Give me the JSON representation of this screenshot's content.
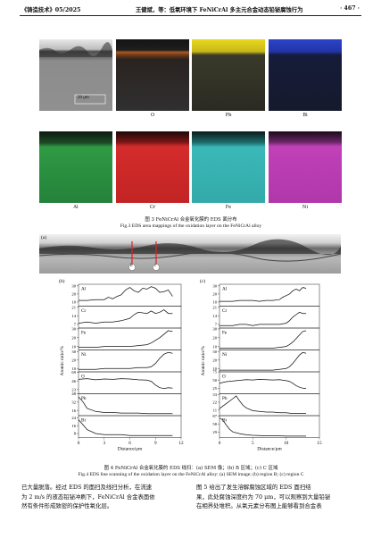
{
  "header": {
    "journal": "《铸造技术》05/2025",
    "title": "王健斌，等：低氧环境下 FeNiCrAl 多主元合金动态铅铋腐蚀行为",
    "page": "· 467 ·"
  },
  "fig3": {
    "scale_bar": "20 μm",
    "row1_labels": [
      "O",
      "Pb",
      "Bi"
    ],
    "row2_labels": [
      "Al",
      "Cr",
      "Fe",
      "Ni"
    ],
    "caption_cn": "图 3 FeNiCrAl 合金氧化膜的 EDS 面分布",
    "caption_en": "Fig.3 EDS area mappings of the oxidation layer on the FeNiCrAl alloy"
  },
  "fig4": {
    "panel_a": "(a)",
    "marker_b": "b",
    "marker_c": "c",
    "panel_b": "(b)",
    "panel_c": "(c)",
    "ylabel": "Atomic ratio/%",
    "xlabel": "Distance/μm",
    "caption_cn": "图 4 FeNiCrAl 合金氧化膜的 EDS 线扫：(a) SEM 像；(b) B 区域；(c) C 区域",
    "caption_en": "Fig.4 EDS line scanning of the oxidation layer on the FeNiCrAl alloy: (a) SEM image; (b) region B; (c) region C"
  },
  "chart_data": [
    {
      "type": "line",
      "title": "(b)",
      "xlabel": "Distance/μm",
      "ylabel": "Atomic ratio/%",
      "xlim": [
        0,
        12
      ],
      "xticks": [
        0,
        3,
        6,
        9,
        12
      ],
      "series": [
        {
          "name": "Al",
          "yticks": [
            10,
            20,
            30
          ],
          "ylim": [
            5,
            32
          ],
          "x": [
            0,
            1,
            2,
            3,
            3.5,
            4,
            4.5,
            5,
            5.5,
            6,
            6.5,
            7,
            7.5,
            8,
            8.5,
            9,
            9.5,
            10,
            10.5,
            11
          ],
          "values": [
            12,
            12,
            13,
            13,
            16,
            14,
            17,
            19,
            25,
            28,
            24,
            22,
            27,
            26,
            29,
            27,
            22,
            23,
            25,
            17
          ]
        },
        {
          "name": "Cr",
          "yticks": [
            7,
            14,
            21
          ],
          "ylim": [
            4,
            22
          ],
          "x": [
            0,
            1,
            2,
            3,
            4,
            5,
            6,
            6.5,
            7,
            8,
            8.5,
            9,
            9.5,
            10,
            10.5,
            11
          ],
          "values": [
            8,
            9,
            8,
            9,
            9,
            10,
            12,
            15,
            17,
            16,
            18,
            16,
            17,
            19,
            16,
            16
          ]
        },
        {
          "name": "Fe",
          "yticks": [
            10,
            20,
            30
          ],
          "ylim": [
            6,
            31
          ],
          "x": [
            0,
            1,
            2,
            3,
            4,
            5,
            6,
            7,
            8,
            8.5,
            9,
            9.5,
            10,
            10.5,
            11
          ],
          "values": [
            9,
            9,
            9,
            10,
            10,
            10,
            10,
            11,
            12,
            14,
            17,
            20,
            24,
            28,
            27
          ]
        },
        {
          "name": "Ni",
          "yticks": [
            10,
            20,
            30
          ],
          "ylim": [
            6,
            32
          ],
          "x": [
            0,
            1,
            2,
            3,
            4,
            5,
            6,
            7,
            8,
            8.5,
            9,
            9.5,
            10,
            10.5,
            11
          ],
          "values": [
            9,
            9,
            9,
            10,
            10,
            10,
            10,
            11,
            11,
            12,
            16,
            22,
            27,
            29,
            28
          ]
        },
        {
          "name": "O",
          "yticks": [
            23,
            46,
            69
          ],
          "ylim": [
            12,
            70
          ],
          "x": [
            0,
            1,
            2,
            3,
            4,
            5,
            6,
            7,
            8,
            8.5,
            9,
            9.5,
            10,
            10.5,
            11
          ],
          "values": [
            50,
            52,
            49,
            51,
            50,
            52,
            51,
            49,
            48,
            45,
            35,
            28,
            26,
            28,
            27
          ]
        },
        {
          "name": "Pb",
          "yticks": [
            16,
            32,
            48
          ],
          "ylim": [
            6,
            48
          ],
          "x": [
            0,
            0.5,
            1,
            2,
            3,
            4,
            5,
            6,
            7,
            8,
            9,
            10,
            11
          ],
          "values": [
            42,
            33,
            20,
            14,
            12,
            12,
            11,
            11,
            11,
            10,
            10,
            10,
            10
          ]
        },
        {
          "name": "Bi",
          "yticks": [
            8,
            16,
            24
          ],
          "ylim": [
            4,
            26
          ],
          "x": [
            0,
            0.5,
            1,
            2,
            3,
            4,
            5,
            6,
            7,
            8,
            9,
            10,
            11
          ],
          "values": [
            22,
            17,
            12,
            8,
            7,
            7,
            7,
            6,
            6,
            6,
            6,
            6,
            6
          ]
        }
      ]
    },
    {
      "type": "line",
      "title": "(c)",
      "xlabel": "Distance/μm",
      "ylabel": "Atomic ratio/%",
      "xlim": [
        0,
        15
      ],
      "xticks": [
        0,
        5,
        10,
        15
      ],
      "series": [
        {
          "name": "Al",
          "yticks": [
            10,
            20,
            30
          ],
          "ylim": [
            5,
            32
          ],
          "x": [
            0,
            1,
            2,
            3,
            4,
            5,
            6,
            7,
            8,
            9,
            9.5,
            10,
            10.5,
            11,
            11.5,
            12,
            12.5,
            13
          ],
          "values": [
            11,
            11,
            11,
            12,
            12,
            12,
            11,
            12,
            12,
            13,
            16,
            18,
            20,
            24,
            26,
            24,
            28,
            27
          ]
        },
        {
          "name": "Cr",
          "yticks": [
            7,
            14,
            21
          ],
          "ylim": [
            4,
            22
          ],
          "x": [
            0,
            1,
            2,
            3,
            4,
            5,
            6,
            7,
            8,
            9,
            10,
            10.5,
            11,
            11.5,
            12,
            12.5,
            13
          ],
          "values": [
            6,
            6,
            6,
            7,
            7,
            6,
            7,
            7,
            7,
            7,
            8,
            10,
            13,
            15,
            17,
            16,
            16
          ]
        },
        {
          "name": "Fe",
          "yticks": [
            10,
            20,
            30
          ],
          "ylim": [
            6,
            31
          ],
          "x": [
            0,
            1,
            2,
            3,
            4,
            5,
            6,
            7,
            8,
            9,
            10,
            10.5,
            11,
            11.5,
            12,
            12.5,
            13
          ],
          "values": [
            8,
            8,
            8,
            8,
            8,
            8,
            8,
            8,
            8,
            9,
            10,
            12,
            15,
            19,
            23,
            27,
            28
          ]
        },
        {
          "name": "Ni",
          "yticks": [
            10,
            20,
            30
          ],
          "ylim": [
            6,
            32
          ],
          "x": [
            0,
            1,
            2,
            3,
            4,
            5,
            6,
            7,
            8,
            9,
            10,
            10.5,
            11,
            11.5,
            12,
            12.5,
            13
          ],
          "values": [
            8,
            8,
            8,
            8,
            8,
            8,
            8,
            8,
            8,
            9,
            10,
            12,
            16,
            21,
            26,
            29,
            28
          ]
        },
        {
          "name": "O",
          "yticks": [
            25,
            50,
            75
          ],
          "ylim": [
            8,
            75
          ],
          "x": [
            0,
            1,
            2,
            3,
            4,
            5,
            6,
            7,
            8,
            9,
            10,
            10.5,
            11,
            11.5,
            12,
            12.5,
            13
          ],
          "values": [
            40,
            45,
            47,
            49,
            51,
            50,
            52,
            51,
            50,
            51,
            48,
            46,
            40,
            33,
            28,
            25,
            24
          ]
        },
        {
          "name": "Pb",
          "yticks": [
            11,
            22,
            33
          ],
          "ylim": [
            3,
            34
          ],
          "x": [
            0,
            1,
            2,
            2.5,
            3,
            3.5,
            4,
            5,
            6,
            7,
            8,
            9,
            10,
            11,
            12,
            13
          ],
          "values": [
            13,
            20,
            27,
            31,
            24,
            18,
            14,
            10,
            9,
            8,
            8,
            7,
            7,
            6,
            6,
            6
          ]
        },
        {
          "name": "Bi",
          "yticks": [
            29,
            58,
            87
          ],
          "ylim": [
            10,
            88
          ],
          "x": [
            0,
            0.5,
            1,
            1.5,
            2,
            3,
            4,
            5,
            6,
            7,
            8,
            9,
            10,
            11,
            12,
            13
          ],
          "values": [
            80,
            72,
            55,
            40,
            30,
            24,
            20,
            18,
            17,
            16,
            16,
            16,
            15,
            15,
            15,
            15
          ]
        }
      ]
    }
  ],
  "body": {
    "left": [
      "已大量脱落。经过 EDS 的面扫及线扫分析，在流速",
      "为 2 m/s 的液态铅铋冲刷下，FeNiCrAl 合金表面依",
      "然有条件形成致密的保护性氧化层。"
    ],
    "right": [
      "图 5 给出了发生溶解腐蚀区域的 EDS 面扫结",
      "果，此处腐蚀深度约为 70 μm，可以观察到大量铅铋",
      "在相界处堆积。从氧元素分布图上能够看到合金表"
    ]
  }
}
